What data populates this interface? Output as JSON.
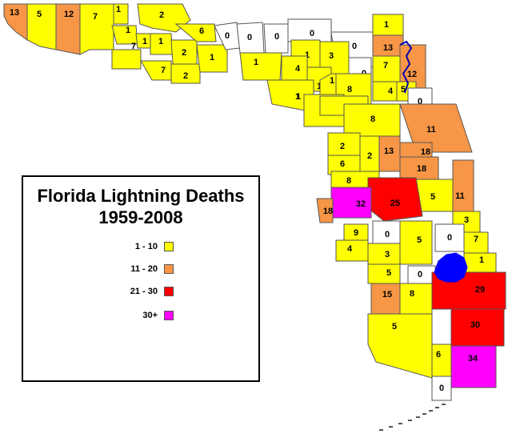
{
  "legend": {
    "title_line1": "Florida Lightning Deaths",
    "title_line2": "1959-2008",
    "items": [
      {
        "label": "1 - 10",
        "color": "#ffff00"
      },
      {
        "label": "11 - 20",
        "color": "#f79646"
      },
      {
        "label": "21 - 30",
        "color": "#ff0000"
      },
      {
        "label": "30+",
        "color": "#ff00ff"
      }
    ]
  },
  "colors": {
    "low": "#ffff00",
    "mid": "#f79646",
    "high": "#ff0000",
    "top": "#ff00ff",
    "none": "#ffffff",
    "border": "#555555",
    "lake": "#0000ff",
    "river": "#0000aa"
  },
  "counties": [
    {
      "v": "13"
    },
    {
      "v": "5"
    },
    {
      "v": "12"
    },
    {
      "v": "7"
    },
    {
      "v": "1"
    },
    {
      "v": "2"
    },
    {
      "v": "1"
    },
    {
      "v": "1"
    },
    {
      "v": "7"
    },
    {
      "v": "1"
    },
    {
      "v": "2"
    },
    {
      "v": "7"
    },
    {
      "v": "2"
    },
    {
      "v": "6"
    },
    {
      "v": "1"
    },
    {
      "v": "0"
    },
    {
      "v": "0"
    },
    {
      "v": "0"
    },
    {
      "v": "0"
    },
    {
      "v": "0"
    },
    {
      "v": "1"
    },
    {
      "v": "1"
    },
    {
      "v": "3"
    },
    {
      "v": "4"
    },
    {
      "v": "1"
    },
    {
      "v": "0"
    },
    {
      "v": "1"
    },
    {
      "v": "1"
    },
    {
      "v": "8"
    },
    {
      "v": "1"
    },
    {
      "v": "13"
    },
    {
      "v": "7"
    },
    {
      "v": "12"
    },
    {
      "v": "4"
    },
    {
      "v": "5"
    },
    {
      "v": "1"
    },
    {
      "v": "1"
    },
    {
      "v": "8"
    },
    {
      "v": "0"
    },
    {
      "v": "11"
    },
    {
      "v": "2"
    },
    {
      "v": "2"
    },
    {
      "v": "13"
    },
    {
      "v": "18"
    },
    {
      "v": "6"
    },
    {
      "v": "18"
    },
    {
      "v": "8"
    },
    {
      "v": "5"
    },
    {
      "v": "25"
    },
    {
      "v": "11"
    },
    {
      "v": "32"
    },
    {
      "v": "18"
    },
    {
      "v": "3"
    },
    {
      "v": "9"
    },
    {
      "v": "0"
    },
    {
      "v": "5"
    },
    {
      "v": "0"
    },
    {
      "v": "7"
    },
    {
      "v": "4"
    },
    {
      "v": "3"
    },
    {
      "v": "1"
    },
    {
      "v": "5"
    },
    {
      "v": "0"
    },
    {
      "v": "29"
    },
    {
      "v": "15"
    },
    {
      "v": "8"
    },
    {
      "v": "5"
    },
    {
      "v": "30"
    },
    {
      "v": "6"
    },
    {
      "v": "0"
    },
    {
      "v": "34"
    }
  ]
}
